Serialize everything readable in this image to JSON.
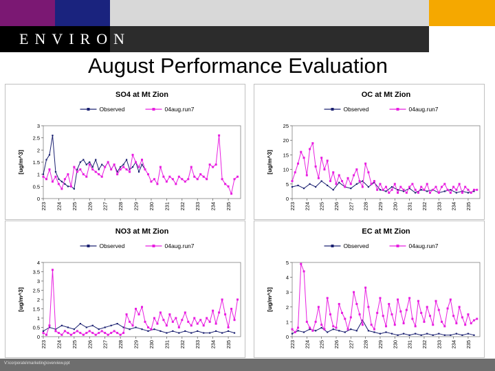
{
  "header": {
    "logo_text": "ENVIRON",
    "title": "August Performance Evaluation",
    "footer_path": "V:\\corporate\\marketing\\overview.ppt",
    "colors": {
      "purple": "#7b1873",
      "navy": "#1a237e",
      "gold": "#f5a800",
      "gray": "#d8d8d8",
      "dark": "#2c2c2c"
    }
  },
  "chart_data": [
    {
      "type": "line",
      "title": "SO4 at Mt Zion",
      "ylabel": "[ug/m^3]",
      "ylim": [
        0,
        3
      ],
      "yticks": [
        "0",
        "0.5",
        "1",
        "1.5",
        "2",
        "2.5",
        "3"
      ],
      "xticks": [
        "223",
        "224",
        "225",
        "226",
        "227",
        "228",
        "229",
        "230",
        "231",
        "232",
        "233",
        "234",
        "235"
      ],
      "series": [
        {
          "name": "Observed",
          "color": "#1a2070",
          "x": [
            223.0,
            223.2,
            223.4,
            223.6,
            223.8,
            224.0,
            224.2,
            224.4,
            224.6,
            224.8,
            225.0,
            225.2,
            225.4,
            225.6,
            225.8,
            226.0,
            226.2,
            226.4,
            226.6,
            226.8,
            227.0,
            227.2,
            227.4,
            227.6,
            227.8,
            228.0,
            228.2,
            228.4,
            228.6,
            228.8,
            229.0,
            229.2,
            229.4,
            229.6
          ],
          "y": [
            1.0,
            1.6,
            1.8,
            2.6,
            1.1,
            0.8,
            0.7,
            0.6,
            0.5,
            0.5,
            0.4,
            1.2,
            1.5,
            1.6,
            1.4,
            1.5,
            1.3,
            1.6,
            1.2,
            1.4,
            1.3,
            1.5,
            1.2,
            1.4,
            1.1,
            1.3,
            1.4,
            1.6,
            1.2,
            1.3,
            1.5,
            1.1,
            1.4,
            1.2
          ]
        },
        {
          "name": "04aug.run7",
          "color": "#e81ee0",
          "x": [
            223.0,
            223.2,
            223.4,
            223.6,
            223.8,
            224.0,
            224.2,
            224.4,
            224.6,
            224.8,
            225.0,
            225.2,
            225.4,
            225.6,
            225.8,
            226.0,
            226.2,
            226.4,
            226.6,
            226.8,
            227.0,
            227.2,
            227.4,
            227.6,
            227.8,
            228.0,
            228.2,
            228.4,
            228.6,
            228.8,
            229.0,
            229.2,
            229.4,
            229.6,
            229.8,
            230.0,
            230.2,
            230.4,
            230.6,
            230.8,
            231.0,
            231.2,
            231.4,
            231.6,
            231.8,
            232.0,
            232.2,
            232.4,
            232.6,
            232.8,
            233.0,
            233.2,
            233.4,
            233.6,
            233.8,
            234.0,
            234.2,
            234.4,
            234.6,
            234.8,
            235.0,
            235.2,
            235.4,
            235.6
          ],
          "y": [
            0.9,
            0.8,
            1.2,
            0.7,
            0.9,
            0.6,
            0.4,
            0.8,
            1.0,
            0.5,
            1.3,
            1.1,
            1.2,
            1.0,
            0.9,
            1.4,
            1.2,
            1.1,
            1.0,
            0.9,
            1.3,
            1.5,
            1.2,
            1.4,
            1.0,
            1.2,
            1.3,
            1.2,
            1.1,
            1.8,
            1.5,
            1.3,
            1.6,
            1.2,
            1.0,
            0.7,
            0.8,
            0.6,
            1.3,
            0.9,
            0.7,
            0.9,
            0.8,
            0.6,
            0.9,
            0.8,
            0.7,
            0.8,
            1.3,
            0.9,
            0.8,
            1.0,
            0.9,
            0.8,
            1.4,
            1.3,
            1.4,
            2.6,
            0.8,
            0.6,
            0.5,
            0.2,
            0.8,
            0.9
          ]
        }
      ]
    },
    {
      "type": "line",
      "title": "OC at Mt Zion",
      "ylabel": "[ug/m^3]",
      "ylim": [
        0,
        25
      ],
      "yticks": [
        "0",
        "5",
        "10",
        "15",
        "20",
        "25"
      ],
      "xticks": [
        "223",
        "224",
        "225",
        "226",
        "227",
        "228",
        "229",
        "230",
        "231",
        "232",
        "233",
        "234",
        "235"
      ],
      "series": [
        {
          "name": "Observed",
          "color": "#1a2070",
          "x": [
            223.0,
            223.4,
            223.8,
            224.2,
            224.6,
            225.0,
            225.4,
            225.8,
            226.2,
            226.6,
            227.0,
            227.4,
            227.8,
            228.2,
            228.6,
            229.0,
            229.4,
            229.8,
            230.2,
            230.6,
            231.0,
            231.4,
            231.8,
            232.2,
            232.6,
            233.0,
            233.4,
            233.8,
            234.2,
            234.6,
            235.0,
            235.4
          ],
          "y": [
            4.0,
            4.5,
            3.5,
            5.0,
            4.0,
            6.0,
            4.5,
            3.0,
            5.5,
            4.0,
            3.5,
            5.0,
            6.0,
            4.0,
            5.5,
            3.0,
            2.5,
            4.0,
            3.0,
            2.5,
            3.5,
            2.0,
            3.0,
            2.5,
            3.0,
            2.0,
            2.5,
            3.0,
            2.0,
            2.5,
            2.0,
            2.5
          ]
        },
        {
          "name": "04aug.run7",
          "color": "#e81ee0",
          "x": [
            223.0,
            223.2,
            223.4,
            223.6,
            223.8,
            224.0,
            224.2,
            224.4,
            224.6,
            224.8,
            225.0,
            225.2,
            225.4,
            225.6,
            225.8,
            226.0,
            226.2,
            226.4,
            226.6,
            226.8,
            227.0,
            227.2,
            227.4,
            227.6,
            227.8,
            228.0,
            228.2,
            228.4,
            228.6,
            228.8,
            229.0,
            229.2,
            229.4,
            229.6,
            229.8,
            230.0,
            230.2,
            230.4,
            230.6,
            230.8,
            231.0,
            231.2,
            231.4,
            231.6,
            231.8,
            232.0,
            232.2,
            232.4,
            232.6,
            232.8,
            233.0,
            233.2,
            233.4,
            233.6,
            233.8,
            234.0,
            234.2,
            234.4,
            234.6,
            234.8,
            235.0,
            235.2,
            235.4,
            235.6
          ],
          "y": [
            6.0,
            9.0,
            12.0,
            16.0,
            14.0,
            8.0,
            17.0,
            19.0,
            11.0,
            7.0,
            14.0,
            10.0,
            13.0,
            6.0,
            9.0,
            5.0,
            8.0,
            6.0,
            4.0,
            7.0,
            5.0,
            8.0,
            10.0,
            6.0,
            4.0,
            12.0,
            9.0,
            5.0,
            6.0,
            3.0,
            5.0,
            3.0,
            4.0,
            2.0,
            3.0,
            5.0,
            2.0,
            4.0,
            3.0,
            2.0,
            4.0,
            5.0,
            3.0,
            2.0,
            4.0,
            3.0,
            5.0,
            2.0,
            3.0,
            4.0,
            2.0,
            4.0,
            5.0,
            3.0,
            2.0,
            4.0,
            3.0,
            5.0,
            2.0,
            4.0,
            3.0,
            2.0,
            3.0,
            3.0
          ]
        }
      ]
    },
    {
      "type": "line",
      "title": "NO3 at Mt Zion",
      "ylabel": "[ug/m^3]",
      "ylim": [
        0,
        4
      ],
      "yticks": [
        "0",
        "0.5",
        "1",
        "1.5",
        "2",
        "2.5",
        "3",
        "3.5",
        "4"
      ],
      "xticks": [
        "223",
        "224",
        "225",
        "226",
        "227",
        "228",
        "229",
        "230",
        "231",
        "232",
        "233",
        "234",
        "235"
      ],
      "series": [
        {
          "name": "Observed",
          "color": "#1a2070",
          "x": [
            223.0,
            223.4,
            223.8,
            224.2,
            224.6,
            225.0,
            225.4,
            225.8,
            226.2,
            226.6,
            227.0,
            227.4,
            227.8,
            228.2,
            228.6,
            229.0,
            229.4,
            229.8,
            230.2,
            230.6,
            231.0,
            231.4,
            231.8,
            232.2,
            232.6,
            233.0,
            233.4,
            233.8,
            234.2,
            234.6,
            235.0,
            235.4
          ],
          "y": [
            0.3,
            0.5,
            0.4,
            0.6,
            0.5,
            0.4,
            0.7,
            0.5,
            0.6,
            0.4,
            0.5,
            0.6,
            0.7,
            0.5,
            0.4,
            0.5,
            0.4,
            0.3,
            0.4,
            0.3,
            0.2,
            0.3,
            0.2,
            0.3,
            0.2,
            0.3,
            0.2,
            0.2,
            0.3,
            0.2,
            0.3,
            0.2
          ]
        },
        {
          "name": "04aug.run7",
          "color": "#e81ee0",
          "x": [
            223.0,
            223.2,
            223.4,
            223.6,
            223.8,
            224.0,
            224.2,
            224.4,
            224.6,
            224.8,
            225.0,
            225.2,
            225.4,
            225.6,
            225.8,
            226.0,
            226.2,
            226.4,
            226.6,
            226.8,
            227.0,
            227.2,
            227.4,
            227.6,
            227.8,
            228.0,
            228.2,
            228.4,
            228.6,
            228.8,
            229.0,
            229.2,
            229.4,
            229.6,
            229.8,
            230.0,
            230.2,
            230.4,
            230.6,
            230.8,
            231.0,
            231.2,
            231.4,
            231.6,
            231.8,
            232.0,
            232.2,
            232.4,
            232.6,
            232.8,
            233.0,
            233.2,
            233.4,
            233.6,
            233.8,
            234.0,
            234.2,
            234.4,
            234.6,
            234.8,
            235.0,
            235.2,
            235.4,
            235.6
          ],
          "y": [
            0.2,
            0.1,
            0.6,
            3.6,
            0.3,
            0.2,
            0.1,
            0.3,
            0.2,
            0.1,
            0.2,
            0.3,
            0.2,
            0.1,
            0.2,
            0.3,
            0.2,
            0.1,
            0.2,
            0.3,
            0.2,
            0.1,
            0.2,
            0.3,
            0.2,
            0.1,
            0.2,
            1.2,
            0.8,
            0.6,
            1.5,
            1.2,
            1.6,
            0.8,
            0.5,
            0.4,
            1.0,
            0.7,
            1.3,
            0.9,
            0.6,
            1.2,
            0.8,
            1.0,
            0.5,
            0.9,
            1.3,
            0.8,
            0.6,
            1.0,
            0.7,
            0.9,
            0.6,
            1.0,
            0.8,
            1.4,
            0.7,
            1.3,
            2.0,
            1.2,
            0.5,
            1.5,
            0.9,
            2.0
          ]
        }
      ]
    },
    {
      "type": "line",
      "title": "EC at Mt Zion",
      "ylabel": "[ug/m^3]",
      "ylim": [
        0,
        5
      ],
      "yticks": [
        "0",
        "1",
        "2",
        "3",
        "4",
        "5"
      ],
      "xticks": [
        "223",
        "224",
        "225",
        "226",
        "227",
        "228",
        "229",
        "230",
        "231",
        "232",
        "233",
        "234",
        "235"
      ],
      "series": [
        {
          "name": "Observed",
          "color": "#1a2070",
          "x": [
            223.0,
            223.4,
            223.8,
            224.2,
            224.6,
            225.0,
            225.4,
            225.8,
            226.2,
            226.6,
            227.0,
            227.4,
            227.8,
            228.2,
            228.6,
            229.0,
            229.4,
            229.8,
            230.2,
            230.6,
            231.0,
            231.4,
            231.8,
            232.2,
            232.6,
            233.0,
            233.4,
            233.8,
            234.2,
            234.6,
            235.0,
            235.4
          ],
          "y": [
            0.2,
            0.4,
            0.3,
            0.5,
            0.4,
            0.6,
            0.3,
            0.5,
            0.4,
            0.3,
            0.5,
            0.4,
            1.1,
            0.4,
            0.3,
            0.2,
            0.3,
            0.2,
            0.1,
            0.2,
            0.1,
            0.2,
            0.1,
            0.2,
            0.1,
            0.2,
            0.1,
            0.1,
            0.2,
            0.1,
            0.2,
            0.1
          ]
        },
        {
          "name": "04aug.run7",
          "color": "#e81ee0",
          "x": [
            223.0,
            223.2,
            223.4,
            223.6,
            223.8,
            224.0,
            224.2,
            224.4,
            224.6,
            224.8,
            225.0,
            225.2,
            225.4,
            225.6,
            225.8,
            226.0,
            226.2,
            226.4,
            226.6,
            226.8,
            227.0,
            227.2,
            227.4,
            227.6,
            227.8,
            228.0,
            228.2,
            228.4,
            228.6,
            228.8,
            229.0,
            229.2,
            229.4,
            229.6,
            229.8,
            230.0,
            230.2,
            230.4,
            230.6,
            230.8,
            231.0,
            231.2,
            231.4,
            231.6,
            231.8,
            232.0,
            232.2,
            232.4,
            232.6,
            232.8,
            233.0,
            233.2,
            233.4,
            233.6,
            233.8,
            234.0,
            234.2,
            234.4,
            234.6,
            234.8,
            235.0,
            235.2,
            235.4,
            235.6
          ],
          "y": [
            0.5,
            0.3,
            0.6,
            4.9,
            4.4,
            1.0,
            0.6,
            0.4,
            1.0,
            2.0,
            0.8,
            0.5,
            2.6,
            1.5,
            0.7,
            0.6,
            2.2,
            1.6,
            1.2,
            0.5,
            1.3,
            3.0,
            2.2,
            1.5,
            0.8,
            3.3,
            2.0,
            0.8,
            0.5,
            1.6,
            2.6,
            1.4,
            0.7,
            2.2,
            1.5,
            0.8,
            2.5,
            1.7,
            0.9,
            1.8,
            2.6,
            1.2,
            0.7,
            2.4,
            1.6,
            1.0,
            2.0,
            1.4,
            0.8,
            2.4,
            1.8,
            1.0,
            0.7,
            1.9,
            2.5,
            1.4,
            0.9,
            2.0,
            1.3,
            0.8,
            1.5,
            0.9,
            1.1,
            1.2
          ]
        }
      ]
    }
  ]
}
